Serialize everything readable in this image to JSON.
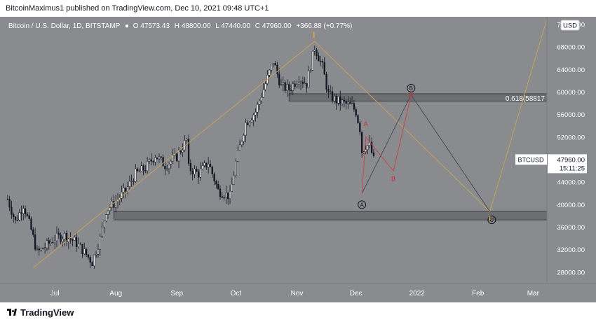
{
  "header": {
    "publisher_line": "BitcoinMaximus1 published on TradingView.com, Dec 10, 2021 09:48 UTC+1"
  },
  "legend": {
    "symbol": "Bitcoin / U.S. Dollar, 1D, BITSTAMP",
    "open_label": "O",
    "open": "47573.43",
    "high_label": "H",
    "high": "48800.00",
    "low_label": "L",
    "low": "47440.00",
    "close_label": "C",
    "close": "47960.00",
    "change": "+366.88 (+0.77%)"
  },
  "currency_badge": "USD",
  "footer": {
    "brand": "TradingView"
  },
  "colors": {
    "background": "#8a8b8f",
    "panel": "#ffffff",
    "candle": "#131722",
    "projection_line": "#c4a15a",
    "abc_line": "#4a4c52",
    "subwave_line": "#c2484e",
    "subwave_label": "#d8262e",
    "zone_fill": "#6d6e72",
    "zone_border": "#3f4045",
    "wave_marker": "#f0a230",
    "price_tag": "#ffffff"
  },
  "chart_data": {
    "type": "candlestick",
    "symbol": "BTCUSD",
    "timeframe": "1D",
    "x_range": [
      "2021-06-06",
      "2022-03-08"
    ],
    "x_ticks": [
      {
        "date": "2021-07-01",
        "label": "Jul"
      },
      {
        "date": "2021-08-01",
        "label": "Aug"
      },
      {
        "date": "2021-09-01",
        "label": "Sep"
      },
      {
        "date": "2021-10-01",
        "label": "Oct"
      },
      {
        "date": "2021-11-01",
        "label": "Nov"
      },
      {
        "date": "2021-12-01",
        "label": "Dec"
      },
      {
        "date": "2022-01-01",
        "label": "2022"
      },
      {
        "date": "2022-02-01",
        "label": "Feb"
      },
      {
        "date": "2022-03-01",
        "label": "Mar"
      }
    ],
    "y_range": [
      26000,
      73000
    ],
    "y_ticks": [
      {
        "value": 28000,
        "label": "28000.00"
      },
      {
        "value": 32000,
        "label": "32000.00"
      },
      {
        "value": 36000,
        "label": "36000.00"
      },
      {
        "value": 40000,
        "label": "40000.00"
      },
      {
        "value": 44000,
        "label": "44000.00"
      },
      {
        "value": 48000,
        "label": "48000.00"
      },
      {
        "value": 52000,
        "label": "52000.00"
      },
      {
        "value": 56000,
        "label": "56000.00"
      },
      {
        "value": 60000,
        "label": "60000.00"
      },
      {
        "value": 64000,
        "label": "64000.00"
      },
      {
        "value": 68000,
        "label": "68000.00"
      },
      {
        "value": 72000,
        "label": "72000.00"
      }
    ],
    "price_path": [
      {
        "date": "2021-06-07",
        "price": 41000
      },
      {
        "date": "2021-06-11",
        "price": 37000
      },
      {
        "date": "2021-06-15",
        "price": 40000
      },
      {
        "date": "2021-06-19",
        "price": 35500
      },
      {
        "date": "2021-06-22",
        "price": 31500
      },
      {
        "date": "2021-06-26",
        "price": 32500
      },
      {
        "date": "2021-07-01",
        "price": 34000
      },
      {
        "date": "2021-07-06",
        "price": 34500
      },
      {
        "date": "2021-07-11",
        "price": 33500
      },
      {
        "date": "2021-07-15",
        "price": 32000
      },
      {
        "date": "2021-07-20",
        "price": 29800
      },
      {
        "date": "2021-07-24",
        "price": 34000
      },
      {
        "date": "2021-07-27",
        "price": 39000
      },
      {
        "date": "2021-08-01",
        "price": 40500
      },
      {
        "date": "2021-08-06",
        "price": 42500
      },
      {
        "date": "2021-08-11",
        "price": 45500
      },
      {
        "date": "2021-08-16",
        "price": 46500
      },
      {
        "date": "2021-08-21",
        "price": 48800
      },
      {
        "date": "2021-08-26",
        "price": 47000
      },
      {
        "date": "2021-09-01",
        "price": 48500
      },
      {
        "date": "2021-09-06",
        "price": 51500
      },
      {
        "date": "2021-09-07",
        "price": 46500
      },
      {
        "date": "2021-09-12",
        "price": 45500
      },
      {
        "date": "2021-09-17",
        "price": 47500
      },
      {
        "date": "2021-09-22",
        "price": 42500
      },
      {
        "date": "2021-09-28",
        "price": 41500
      },
      {
        "date": "2021-10-01",
        "price": 47500
      },
      {
        "date": "2021-10-06",
        "price": 54500
      },
      {
        "date": "2021-10-11",
        "price": 56500
      },
      {
        "date": "2021-10-16",
        "price": 61500
      },
      {
        "date": "2021-10-20",
        "price": 65500
      },
      {
        "date": "2021-10-24",
        "price": 61000
      },
      {
        "date": "2021-10-28",
        "price": 60500
      },
      {
        "date": "2021-11-02",
        "price": 62500
      },
      {
        "date": "2021-11-06",
        "price": 61500
      },
      {
        "date": "2021-11-10",
        "price": 68000
      },
      {
        "date": "2021-11-14",
        "price": 64500
      },
      {
        "date": "2021-11-17",
        "price": 59500
      },
      {
        "date": "2021-11-21",
        "price": 58500
      },
      {
        "date": "2021-11-25",
        "price": 58000
      },
      {
        "date": "2021-11-29",
        "price": 57500
      },
      {
        "date": "2021-12-01",
        "price": 56500
      },
      {
        "date": "2021-12-03",
        "price": 53500
      },
      {
        "date": "2021-12-04",
        "price": 49500
      },
      {
        "date": "2021-12-06",
        "price": 50500
      },
      {
        "date": "2021-12-08",
        "price": 50500
      },
      {
        "date": "2021-12-10",
        "price": 47960
      }
    ],
    "last_price": {
      "value": 47960,
      "label": "47960.00",
      "symbol": "BTCUSD",
      "countdown": "15:11:25"
    },
    "zones": [
      {
        "price_low": 58400,
        "price_high": 59700,
        "date_start": "2021-10-28",
        "date_end": "2022-03-08",
        "label": "0.618(58817"
      },
      {
        "price_low": 37300,
        "price_high": 38800,
        "date_start": "2021-07-31",
        "date_end": "2022-03-08"
      }
    ],
    "lines": {
      "projection": [
        {
          "date": "2021-06-20",
          "price": 28800
        },
        {
          "date": "2021-11-10",
          "price": 69000
        },
        {
          "date": "2022-02-07",
          "price": 38800
        },
        {
          "date": "2022-03-08",
          "price": 73000
        }
      ],
      "abc": [
        {
          "date": "2021-12-04",
          "price": 42000
        },
        {
          "date": "2021-12-29",
          "price": 59500
        },
        {
          "date": "2022-02-07",
          "price": 38800
        }
      ],
      "subwave": [
        {
          "date": "2021-12-04",
          "price": 42000
        },
        {
          "date": "2021-12-06",
          "price": 52000
        },
        {
          "date": "2021-12-20",
          "price": 46000
        },
        {
          "date": "2021-12-29",
          "price": 59500
        }
      ]
    },
    "wave_labels": [
      {
        "text": "A",
        "date": "2021-12-04",
        "price": 40000,
        "style": "circle"
      },
      {
        "text": "B",
        "date": "2021-12-29",
        "price": 60700,
        "style": "circle"
      },
      {
        "text": "C",
        "date": "2022-02-08",
        "price": 37300,
        "style": "circle"
      },
      {
        "text": "A",
        "date": "2021-12-06",
        "price": 54000,
        "style": "small"
      },
      {
        "text": "B",
        "date": "2021-12-20",
        "price": 44200,
        "style": "small"
      },
      {
        "text": "C",
        "date": "2021-12-29",
        "price": 59200,
        "style": "small"
      }
    ]
  }
}
